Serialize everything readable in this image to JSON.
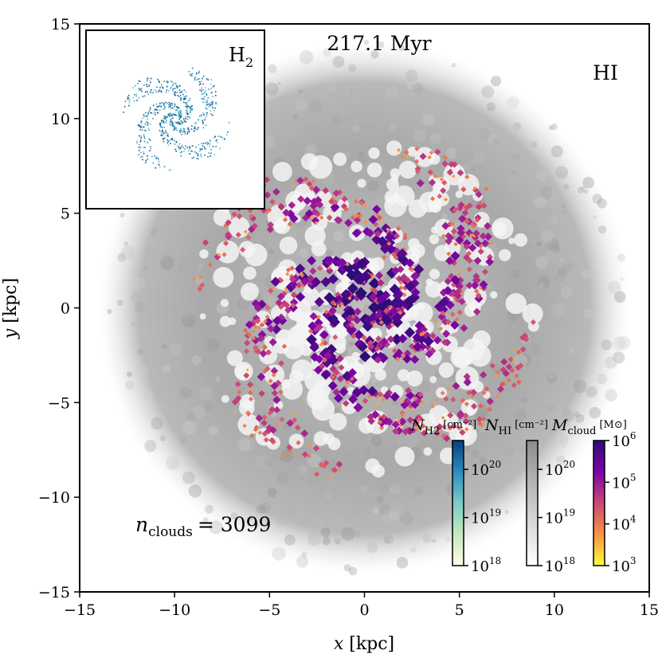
{
  "chart_data": {
    "type": "scatter",
    "title": "217.1 Myr",
    "xlabel": "x [kpc]",
    "ylabel": "y [kpc]",
    "xlim": [
      -15,
      15
    ],
    "ylim": [
      -15,
      15
    ],
    "x_ticks": [
      -15,
      -10,
      -5,
      0,
      5,
      10,
      15
    ],
    "y_ticks": [
      -15,
      -10,
      -5,
      0,
      5,
      10,
      15
    ],
    "x_tick_labels": [
      "−15",
      "−10",
      "−5",
      "0",
      "5",
      "10",
      "15"
    ],
    "y_tick_labels": [
      "−15",
      "−10",
      "−5",
      "0",
      "5",
      "10",
      "15"
    ],
    "background_label": "HI",
    "inset_label": "H",
    "inset_label_sub": "2",
    "cloud_count_label": "n",
    "cloud_count_sub": "clouds",
    "cloud_count_eq": "= 3099",
    "n_clouds": 3099,
    "disk": {
      "center": [
        0,
        0
      ],
      "hi_radius_kpc": 14,
      "cloud_radius_kpc": 9,
      "arms": 4
    },
    "colorbars": [
      {
        "name": "N_H2",
        "label": "N",
        "label_sub": "H2",
        "unit": "[cm⁻²]",
        "tick_base": "10",
        "exponents": [
          "18",
          "19",
          "20"
        ],
        "range_log": [
          18,
          20.6
        ],
        "colors": [
          "#ffffe5",
          "#c7e9c0",
          "#7bccc4",
          "#2b8cbe",
          "#084081"
        ]
      },
      {
        "name": "N_HI",
        "label": "N",
        "label_sub": "HI",
        "unit": "[cm⁻²]",
        "tick_base": "10",
        "exponents": [
          "18",
          "19",
          "20"
        ],
        "range_log": [
          18,
          20.6
        ],
        "colors": [
          "#ffffff",
          "#d9d9d9",
          "#b4b4b4",
          "#8c8c8c"
        ]
      },
      {
        "name": "M_cloud",
        "label": "M",
        "label_sub": "cloud",
        "unit": "[M⊙]",
        "tick_base": "10",
        "exponents": [
          "3",
          "4",
          "5",
          "6"
        ],
        "range_log": [
          3,
          6
        ],
        "colors": [
          "#fcfd3b",
          "#f89540",
          "#cc4778",
          "#7e03a8",
          "#2d0c76"
        ]
      }
    ]
  }
}
